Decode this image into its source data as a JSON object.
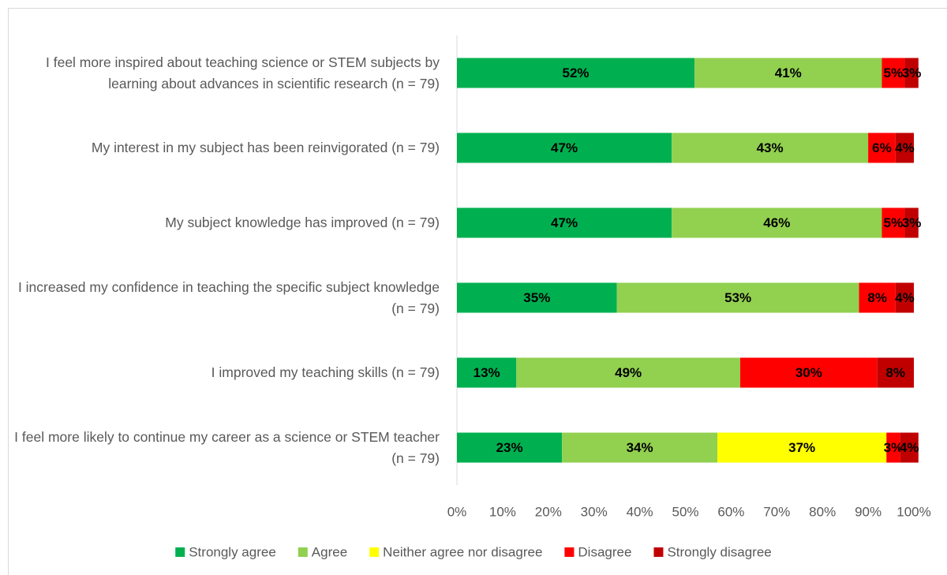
{
  "chart_data": {
    "type": "stacked-bar-horizontal",
    "categories": [
      "I feel more inspired about teaching science or STEM subjects by learning about advances in scientific research (n = 79)",
      "My interest in my subject has been reinvigorated (n = 79)",
      "My subject knowledge has improved (n = 79)",
      "I increased my confidence in teaching the specific subject knowledge (n = 79)",
      "I improved my teaching skills (n = 79)",
      "I feel more likely to continue my career as a science or STEM teacher (n = 79)"
    ],
    "series": [
      {
        "name": "Strongly agree",
        "color": "#00b050",
        "values": [
          52,
          47,
          47,
          35,
          13,
          23
        ],
        "value_labels": [
          "52%",
          "47%",
          "47%",
          "35%",
          "13%",
          "23%"
        ]
      },
      {
        "name": "Agree",
        "color": "#92d050",
        "values": [
          41,
          43,
          46,
          53,
          49,
          34
        ],
        "value_labels": [
          "41%",
          "43%",
          "46%",
          "53%",
          "49%",
          "34%"
        ]
      },
      {
        "name": "Neither agree nor disagree",
        "color": "#ffff00",
        "values": [
          null,
          null,
          null,
          null,
          null,
          37
        ],
        "value_labels": [
          null,
          null,
          null,
          null,
          null,
          "37%"
        ]
      },
      {
        "name": "Disagree",
        "color": "#ff0000",
        "values": [
          5,
          6,
          5,
          8,
          30,
          3
        ],
        "value_labels": [
          "5%",
          "6%",
          "5%",
          "8%",
          "30%",
          "3%"
        ]
      },
      {
        "name": "Strongly disagree",
        "color": "#c00000",
        "values": [
          3,
          4,
          3,
          4,
          8,
          4
        ],
        "value_labels": [
          "3%",
          "4%",
          "3%",
          "4%",
          "8%",
          "4%"
        ]
      }
    ],
    "xlim": [
      0,
      100
    ],
    "xticks": [
      {
        "value": 0,
        "label": "0%"
      },
      {
        "value": 10,
        "label": "10%"
      },
      {
        "value": 20,
        "label": "20%"
      },
      {
        "value": 30,
        "label": "30%"
      },
      {
        "value": 40,
        "label": "40%"
      },
      {
        "value": 50,
        "label": "50%"
      },
      {
        "value": 60,
        "label": "60%"
      },
      {
        "value": 70,
        "label": "70%"
      },
      {
        "value": 80,
        "label": "80%"
      },
      {
        "value": 90,
        "label": "90%"
      },
      {
        "value": 100,
        "label": "100%"
      }
    ],
    "grid": false,
    "legend": "bottom"
  }
}
